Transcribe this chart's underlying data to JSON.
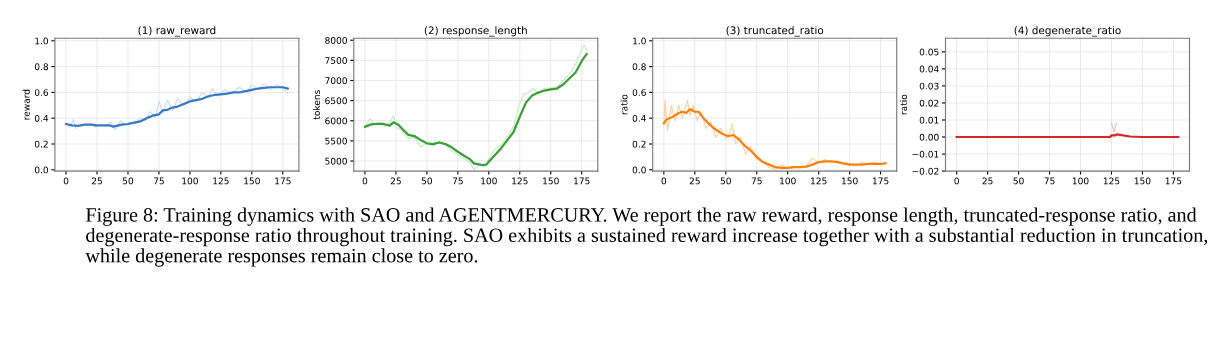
{
  "chart_data": [
    {
      "type": "line",
      "title": "(1) raw_reward",
      "ylabel": "reward",
      "xlim": [
        -9,
        188
      ],
      "ylim": [
        -0.01,
        1.02
      ],
      "xticks": [
        0,
        25,
        50,
        75,
        100,
        125,
        150,
        175
      ],
      "yticks": [
        {
          "value": 0,
          "label": "0.0"
        },
        0.2,
        0.4,
        0.6,
        0.8,
        {
          "value": 1,
          "label": "1.0"
        }
      ],
      "grid": true,
      "series": [
        {
          "color": "#c6dbef",
          "x": [
            0,
            3,
            6,
            8,
            12,
            16,
            20,
            24,
            28,
            32,
            36,
            40,
            44,
            48,
            52,
            56,
            60,
            64,
            68,
            72,
            75,
            78,
            82,
            86,
            90,
            95,
            100,
            105,
            110,
            115,
            118,
            122,
            128,
            134,
            140,
            146,
            150,
            155,
            160,
            165,
            170,
            175,
            179
          ],
          "values": [
            0.36,
            0.33,
            0.39,
            0.32,
            null,
            0.34,
            0.36,
            0.33,
            0.35,
            0.34,
            0.37,
            0.31,
            0.38,
            0.35,
            0.37,
            0.36,
            0.4,
            0.38,
            0.45,
            0.41,
            0.53,
            0.44,
            0.54,
            0.46,
            0.55,
            0.5,
            0.56,
            0.53,
            0.6,
            0.56,
            0.63,
            0.57,
            0.62,
            0.59,
            0.64,
            0.6,
            0.66,
            0.62,
            0.67,
            0.62,
            0.66,
            0.63,
            0.59
          ]
        },
        {
          "color": "#3a78c4",
          "x": [
            0,
            5,
            10,
            15,
            20,
            25,
            30,
            35,
            38,
            45,
            50,
            55,
            60,
            65,
            70,
            75,
            78,
            82,
            85,
            90,
            95,
            100,
            105,
            110,
            115,
            120,
            125,
            130,
            135,
            140,
            145,
            150,
            155,
            160,
            165,
            170,
            175,
            179
          ],
          "values": [
            0.355,
            0.345,
            0.34,
            0.35,
            0.35,
            0.345,
            0.345,
            0.345,
            0.335,
            0.35,
            0.355,
            0.365,
            0.375,
            0.4,
            0.42,
            0.43,
            0.46,
            0.465,
            0.48,
            0.49,
            0.51,
            0.53,
            0.54,
            0.55,
            0.57,
            0.58,
            0.585,
            0.59,
            0.6,
            0.6,
            0.61,
            0.62,
            0.63,
            0.635,
            0.64,
            0.64,
            0.64,
            0.63
          ]
        }
      ]
    },
    {
      "type": "line",
      "title": "(2) response_length",
      "ylabel": "tokens",
      "xlim": [
        -9,
        188
      ],
      "ylim": [
        4750,
        8050
      ],
      "xticks": [
        0,
        25,
        50,
        75,
        100,
        125,
        150,
        175
      ],
      "yticks": [
        5000,
        5500,
        6000,
        6500,
        7000,
        7500,
        8000
      ],
      "grid": true,
      "series": [
        {
          "color": "#c7e9c0",
          "x": [
            0,
            4,
            8,
            12,
            16,
            20,
            23,
            26,
            30,
            35,
            40,
            45,
            50,
            55,
            60,
            65,
            70,
            75,
            80,
            85,
            88,
            92,
            97,
            100,
            105,
            110,
            115,
            120,
            124,
            128,
            132,
            136,
            140,
            145,
            150,
            155,
            160,
            165,
            170,
            174,
            177,
            179
          ],
          "values": [
            5850,
            6050,
            5900,
            5950,
            5850,
            5950,
            6130,
            5820,
            5750,
            5550,
            5600,
            5350,
            5450,
            5380,
            5480,
            5400,
            5250,
            5150,
            5050,
            4950,
            4780,
            4900,
            4880,
            5050,
            5300,
            5400,
            5600,
            5850,
            6350,
            6650,
            6700,
            6800,
            6680,
            6800,
            6820,
            6850,
            7000,
            7150,
            7400,
            7700,
            7880,
            7750
          ]
        },
        {
          "color": "#3a9e3a",
          "x": [
            0,
            5,
            10,
            15,
            20,
            23,
            27,
            30,
            35,
            40,
            45,
            50,
            55,
            60,
            65,
            70,
            75,
            80,
            85,
            88,
            95,
            98,
            100,
            105,
            110,
            115,
            120,
            125,
            130,
            135,
            140,
            145,
            150,
            155,
            160,
            165,
            170,
            175,
            179
          ],
          "values": [
            5850,
            5910,
            5920,
            5920,
            5880,
            5960,
            5900,
            5800,
            5650,
            5620,
            5520,
            5440,
            5420,
            5460,
            5420,
            5340,
            5230,
            5130,
            5040,
            4940,
            4900,
            4910,
            4980,
            5150,
            5320,
            5520,
            5720,
            6100,
            6450,
            6630,
            6700,
            6750,
            6780,
            6800,
            6900,
            7050,
            7200,
            7480,
            7660
          ]
        }
      ]
    },
    {
      "type": "line",
      "title": "(3) truncated_ratio",
      "ylabel": "ratio",
      "xlim": [
        -9,
        188
      ],
      "ylim": [
        -0.01,
        1.02
      ],
      "xticks": [
        0,
        25,
        50,
        75,
        100,
        125,
        150,
        175
      ],
      "yticks": [
        {
          "value": 0,
          "label": "0.0"
        },
        0.2,
        0.4,
        0.6,
        0.8,
        {
          "value": 1,
          "label": "1.0"
        }
      ],
      "grid": true,
      "series": [
        {
          "color": "#fdd0a2",
          "x": [
            0,
            1,
            3,
            6,
            9,
            12,
            15,
            19,
            21,
            24,
            27,
            30,
            34,
            38,
            42,
            46,
            50,
            54,
            55,
            58,
            62,
            66,
            70,
            75,
            80,
            85,
            90,
            95,
            100,
            105,
            110,
            115,
            120,
            125,
            130,
            135,
            140,
            145,
            150,
            155,
            160,
            165,
            170,
            175,
            179
          ],
          "values": [
            0.36,
            0.54,
            0.3,
            0.5,
            0.38,
            0.5,
            0.4,
            0.54,
            0.42,
            0.5,
            0.38,
            0.45,
            0.32,
            0.37,
            0.25,
            0.32,
            0.24,
            0.3,
            0.36,
            0.2,
            0.25,
            0.12,
            0.18,
            0.08,
            0.06,
            0.02,
            0.0,
            0.04,
            0.01,
            0.03,
            0.02,
            0.03,
            0.09,
            0.05,
            0.08,
            0.06,
            0.07,
            0.04,
            0.05,
            0.03,
            0.06,
            0.04,
            0.06,
            0.04,
            0.05
          ]
        },
        {
          "color": "#ff7f0e",
          "x": [
            0,
            2,
            7,
            12,
            15,
            18,
            21,
            25,
            28,
            32,
            37,
            42,
            47,
            52,
            56,
            60,
            65,
            70,
            75,
            80,
            85,
            90,
            95,
            100,
            105,
            110,
            115,
            120,
            125,
            130,
            135,
            140,
            145,
            150,
            155,
            160,
            165,
            170,
            175,
            179
          ],
          "values": [
            0.36,
            0.39,
            0.41,
            0.44,
            0.45,
            0.44,
            0.47,
            0.45,
            0.45,
            0.4,
            0.35,
            0.31,
            0.28,
            0.26,
            0.27,
            0.24,
            0.19,
            0.15,
            0.1,
            0.06,
            0.04,
            0.02,
            0.015,
            0.015,
            0.02,
            0.02,
            0.025,
            0.04,
            0.06,
            0.065,
            0.065,
            0.06,
            0.05,
            0.04,
            0.04,
            0.04,
            0.045,
            0.045,
            0.045,
            0.05
          ]
        }
      ]
    },
    {
      "type": "line",
      "title": "(4) degenerate_ratio",
      "ylabel": "ratio",
      "xlim": [
        -9,
        188
      ],
      "ylim": [
        -0.02,
        0.058
      ],
      "xticks": [
        0,
        25,
        50,
        75,
        100,
        125,
        150,
        175
      ],
      "yticks": [
        {
          "value": -0.02,
          "label": "−0.02"
        },
        {
          "value": -0.01,
          "label": "−0.01"
        },
        {
          "value": 0,
          "label": "0.00"
        },
        0.01,
        0.02,
        0.03,
        0.04,
        0.05
      ],
      "grid": true,
      "series": [
        {
          "color": "#f4b6b6",
          "x": [
            125,
            127,
            129
          ],
          "values": [
            0.008,
            0.003,
            0.008
          ]
        },
        {
          "color": "#d62728",
          "x": [
            0,
            124,
            125,
            128,
            129,
            132,
            140,
            150,
            179
          ],
          "values": [
            0,
            0,
            0.001,
            0.001,
            0.0015,
            0.0012,
            0.0003,
            0,
            0
          ]
        }
      ]
    },
    {
      "type": "other",
      "annotations": [
        "Figure 8: Training dynamics with SAO and AGENTMERCURY. We report the raw reward, response length, truncated-response ratio, and degenerate-response ratio throughout training. SAO exhibits a sustained reward increase together with a substantial reduction in truncation, while degenerate responses remain close to zero."
      ]
    }
  ]
}
